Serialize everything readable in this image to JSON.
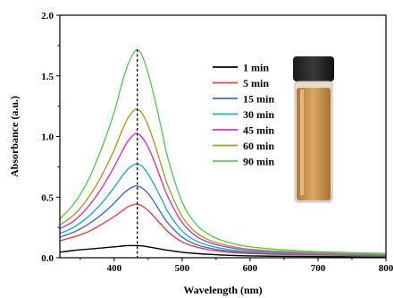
{
  "chart_data": {
    "type": "line",
    "title": "",
    "xlabel": "Wavelength (nm)",
    "ylabel": "Absorbance (a.u.)",
    "xlim": [
      320,
      800
    ],
    "ylim": [
      0,
      2.0
    ],
    "x_ticks": [
      400,
      500,
      600,
      700,
      800
    ],
    "y_ticks": [
      0.0,
      0.5,
      1.0,
      1.5,
      2.0
    ],
    "x_tick_labels": [
      "400",
      "500",
      "600",
      "700",
      "800"
    ],
    "y_tick_labels": [
      "0.0",
      "0.5",
      "1.0",
      "1.5",
      "2.0"
    ],
    "peak_marker_x": 434,
    "legend_position": "upper-middle",
    "x": [
      320,
      340,
      360,
      380,
      400,
      410,
      420,
      430,
      434,
      440,
      450,
      460,
      470,
      480,
      500,
      520,
      540,
      560,
      580,
      600,
      650,
      700,
      750,
      800
    ],
    "series": [
      {
        "name": "1 min",
        "color": "#000000",
        "values": [
          0.045,
          0.06,
          0.07,
          0.08,
          0.09,
          0.095,
          0.1,
          0.1,
          0.1,
          0.098,
          0.09,
          0.08,
          0.07,
          0.06,
          0.045,
          0.035,
          0.028,
          0.022,
          0.018,
          0.015,
          0.012,
          0.01,
          0.008,
          0.006
        ]
      },
      {
        "name": "5 min",
        "color": "#f04040",
        "values": [
          0.14,
          0.17,
          0.21,
          0.27,
          0.34,
          0.38,
          0.42,
          0.44,
          0.44,
          0.43,
          0.39,
          0.33,
          0.27,
          0.21,
          0.13,
          0.09,
          0.065,
          0.05,
          0.04,
          0.035,
          0.027,
          0.022,
          0.02,
          0.018
        ]
      },
      {
        "name": "15 min",
        "color": "#3a6fd8",
        "values": [
          0.17,
          0.21,
          0.27,
          0.35,
          0.45,
          0.51,
          0.56,
          0.59,
          0.59,
          0.58,
          0.53,
          0.45,
          0.36,
          0.28,
          0.17,
          0.11,
          0.08,
          0.06,
          0.05,
          0.043,
          0.033,
          0.027,
          0.024,
          0.02
        ]
      },
      {
        "name": "30 min",
        "color": "#20b2b5",
        "values": [
          0.2,
          0.25,
          0.33,
          0.44,
          0.58,
          0.66,
          0.73,
          0.77,
          0.77,
          0.76,
          0.69,
          0.59,
          0.48,
          0.37,
          0.22,
          0.14,
          0.1,
          0.075,
          0.06,
          0.05,
          0.038,
          0.031,
          0.027,
          0.022
        ]
      },
      {
        "name": "45 min",
        "color": "#d336c9",
        "values": [
          0.24,
          0.3,
          0.41,
          0.56,
          0.75,
          0.86,
          0.96,
          1.02,
          1.02,
          1.0,
          0.91,
          0.78,
          0.63,
          0.49,
          0.29,
          0.18,
          0.125,
          0.095,
          0.075,
          0.062,
          0.046,
          0.037,
          0.031,
          0.026
        ]
      },
      {
        "name": "60 min",
        "color": "#a8a020",
        "values": [
          0.27,
          0.35,
          0.48,
          0.66,
          0.89,
          1.03,
          1.15,
          1.22,
          1.22,
          1.2,
          1.09,
          0.93,
          0.75,
          0.58,
          0.34,
          0.21,
          0.145,
          0.11,
          0.085,
          0.07,
          0.052,
          0.041,
          0.034,
          0.028
        ]
      },
      {
        "name": "90 min",
        "color": "#5cc960",
        "values": [
          0.32,
          0.44,
          0.62,
          0.88,
          1.2,
          1.41,
          1.59,
          1.7,
          1.71,
          1.68,
          1.52,
          1.3,
          1.05,
          0.8,
          0.46,
          0.28,
          0.19,
          0.14,
          0.11,
          0.09,
          0.065,
          0.05,
          0.042,
          0.035
        ]
      }
    ]
  }
}
